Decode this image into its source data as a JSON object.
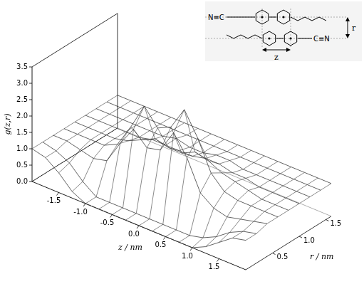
{
  "chart_data": {
    "type": "surface3d",
    "x_label": "z / nm",
    "y_label": "r / nm",
    "z_label": "g(z,r)",
    "x": [
      -2.0,
      -1.75,
      -1.5,
      -1.25,
      -1.0,
      -0.75,
      -0.5,
      -0.25,
      0.0,
      0.25,
      0.5,
      0.75,
      1.0,
      1.25,
      1.5,
      1.75,
      2.0
    ],
    "y": [
      0.0,
      0.2,
      0.4,
      0.6,
      0.8,
      1.0,
      1.2,
      1.4,
      1.6
    ],
    "values": [
      [
        1.0,
        0.9,
        0.6,
        0.2,
        0.0,
        0.0,
        0.0,
        0.0,
        0.0,
        0.0,
        0.0,
        0.0,
        0.0,
        0.2,
        0.5,
        0.8,
        0.9
      ],
      [
        1.0,
        0.9,
        0.7,
        0.3,
        0.0,
        0.0,
        0.0,
        0.0,
        0.0,
        0.0,
        0.0,
        0.0,
        0.1,
        0.3,
        0.6,
        0.8,
        0.9
      ],
      [
        1.0,
        1.0,
        0.9,
        0.8,
        0.9,
        1.6,
        2.2,
        1.8,
        1.9,
        2.6,
        2.0,
        1.1,
        0.8,
        0.7,
        0.8,
        0.9,
        1.0
      ],
      [
        1.0,
        1.0,
        1.0,
        1.0,
        1.2,
        1.9,
        2.7,
        2.2,
        2.4,
        3.1,
        2.4,
        1.5,
        1.1,
        1.0,
        1.0,
        1.0,
        1.0
      ],
      [
        1.0,
        1.0,
        1.0,
        1.0,
        1.1,
        1.3,
        1.5,
        1.4,
        1.4,
        1.6,
        1.5,
        1.3,
        1.2,
        1.1,
        1.0,
        1.0,
        1.0
      ],
      [
        1.0,
        1.0,
        1.0,
        1.0,
        1.0,
        1.1,
        1.1,
        1.1,
        1.1,
        1.2,
        1.2,
        1.1,
        1.1,
        1.0,
        1.0,
        1.0,
        1.0
      ],
      [
        1.0,
        1.0,
        1.0,
        1.0,
        1.0,
        1.0,
        1.1,
        1.0,
        1.0,
        1.1,
        1.1,
        1.0,
        1.0,
        1.0,
        1.0,
        1.0,
        1.0
      ],
      [
        1.0,
        1.0,
        1.0,
        1.0,
        1.0,
        1.0,
        1.0,
        1.0,
        1.0,
        1.0,
        1.0,
        1.0,
        1.0,
        1.0,
        1.0,
        1.0,
        1.0
      ],
      [
        1.0,
        1.0,
        1.0,
        1.0,
        1.0,
        1.0,
        1.0,
        1.0,
        1.0,
        1.0,
        1.0,
        1.0,
        1.0,
        1.0,
        1.0,
        1.0,
        1.0
      ]
    ],
    "xlim": [
      -2.0,
      2.0
    ],
    "xticks": [
      -1.5,
      {
        "value": -1.0,
        "label": "-1.0"
      },
      -0.5,
      {
        "value": 0.0,
        "label": "0.0"
      },
      0.5,
      {
        "value": 1.0,
        "label": "1.0"
      },
      1.5
    ],
    "ylim": [
      0.0,
      1.6
    ],
    "yticks": [
      0.5,
      {
        "value": 1.0,
        "label": "1.0"
      },
      1.5
    ],
    "zlim": [
      0.0,
      3.5
    ],
    "zticks": [
      {
        "value": 0.0,
        "label": "0.0"
      },
      0.5,
      {
        "value": 1.0,
        "label": "1.0"
      },
      1.5,
      {
        "value": 2.0,
        "label": "2.0"
      },
      2.5,
      {
        "value": 3.0,
        "label": "3.0"
      },
      3.5
    ],
    "color": "#3a3a3a",
    "grid": false,
    "inset": {
      "top_group": "N≡C",
      "bottom_group": "C≡N",
      "r_label": "r",
      "z_label": "z"
    }
  }
}
